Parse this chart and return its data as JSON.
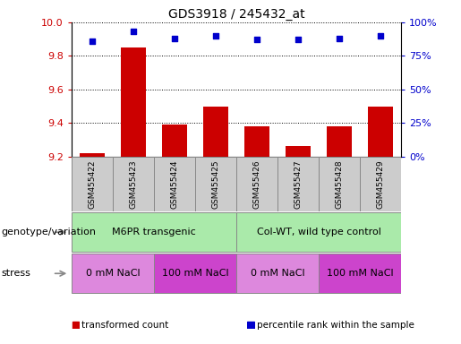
{
  "title": "GDS3918 / 245432_at",
  "samples": [
    "GSM455422",
    "GSM455423",
    "GSM455424",
    "GSM455425",
    "GSM455426",
    "GSM455427",
    "GSM455428",
    "GSM455429"
  ],
  "bar_values": [
    9.22,
    9.85,
    9.39,
    9.5,
    9.38,
    9.26,
    9.38,
    9.5
  ],
  "scatter_values": [
    86,
    93,
    88,
    90,
    87,
    87,
    88,
    90
  ],
  "ylim_left": [
    9.2,
    10.0
  ],
  "ylim_right": [
    0,
    100
  ],
  "yticks_left": [
    9.2,
    9.4,
    9.6,
    9.8,
    10.0
  ],
  "yticks_right": [
    0,
    25,
    50,
    75,
    100
  ],
  "bar_color": "#cc0000",
  "scatter_color": "#0000cc",
  "bar_bottom": 9.2,
  "genotype_groups": [
    {
      "label": "M6PR transgenic",
      "start": 0,
      "end": 4,
      "color": "#aaeaaa"
    },
    {
      "label": "Col-WT, wild type control",
      "start": 4,
      "end": 8,
      "color": "#aaeaaa"
    }
  ],
  "stress_colors_map": {
    "0 mM NaCl": "#dd88dd",
    "100 mM NaCl": "#cc44cc"
  },
  "stress_groups": [
    {
      "label": "0 mM NaCl",
      "start": 0,
      "end": 2
    },
    {
      "label": "100 mM NaCl",
      "start": 2,
      "end": 4
    },
    {
      "label": "0 mM NaCl",
      "start": 4,
      "end": 6
    },
    {
      "label": "100 mM NaCl",
      "start": 6,
      "end": 8
    }
  ],
  "legend_items": [
    {
      "label": "transformed count",
      "color": "#cc0000"
    },
    {
      "label": "percentile rank within the sample",
      "color": "#0000cc"
    }
  ],
  "bar_color_tick": "#cc0000",
  "ylabel_right_color": "#0000cc",
  "genotype_label": "genotype/variation",
  "stress_label": "stress",
  "title_fontsize": 10,
  "tick_fontsize": 8,
  "sample_box_color": "#cccccc",
  "sample_box_edge": "#888888"
}
